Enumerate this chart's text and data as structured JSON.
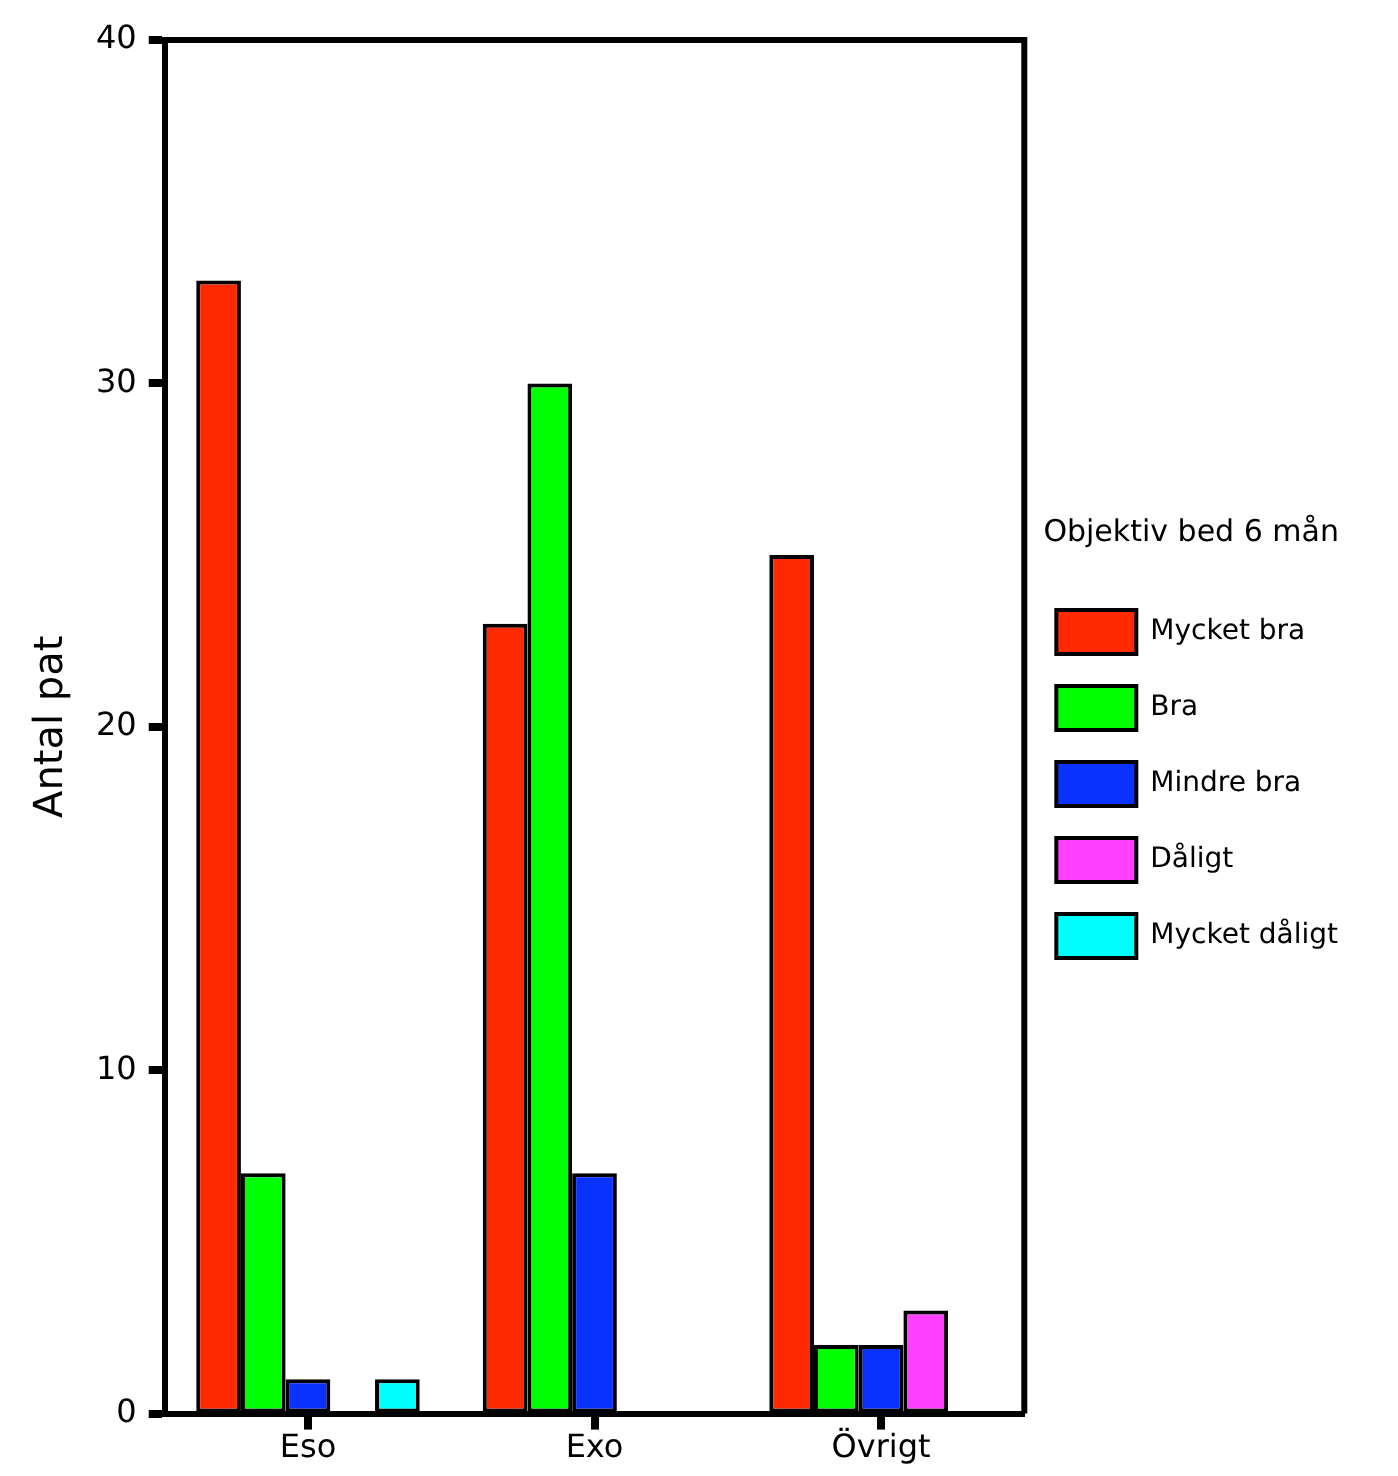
{
  "chart_data": {
    "type": "bar",
    "ylabel": "Antal pat",
    "legend_title": "Objektiv bed 6 mån",
    "categories": [
      "Eso",
      "Exo",
      "Övrigt"
    ],
    "series": [
      {
        "name": "Mycket bra",
        "color": "#ff2a00",
        "values": [
          33,
          23,
          25
        ]
      },
      {
        "name": "Bra",
        "color": "#00ff00",
        "values": [
          7,
          30,
          2
        ]
      },
      {
        "name": "Mindre bra",
        "color": "#0a32ff",
        "values": [
          1,
          7,
          2
        ]
      },
      {
        "name": "Dåligt",
        "color": "#ff40ff",
        "values": [
          0,
          0,
          3
        ]
      },
      {
        "name": "Mycket dåligt",
        "color": "#00ffff",
        "values": [
          1,
          0,
          0
        ]
      }
    ],
    "ylim": [
      0,
      40
    ],
    "yticks": [
      0,
      10,
      20,
      30,
      40
    ],
    "grid": false,
    "legend": "right"
  }
}
